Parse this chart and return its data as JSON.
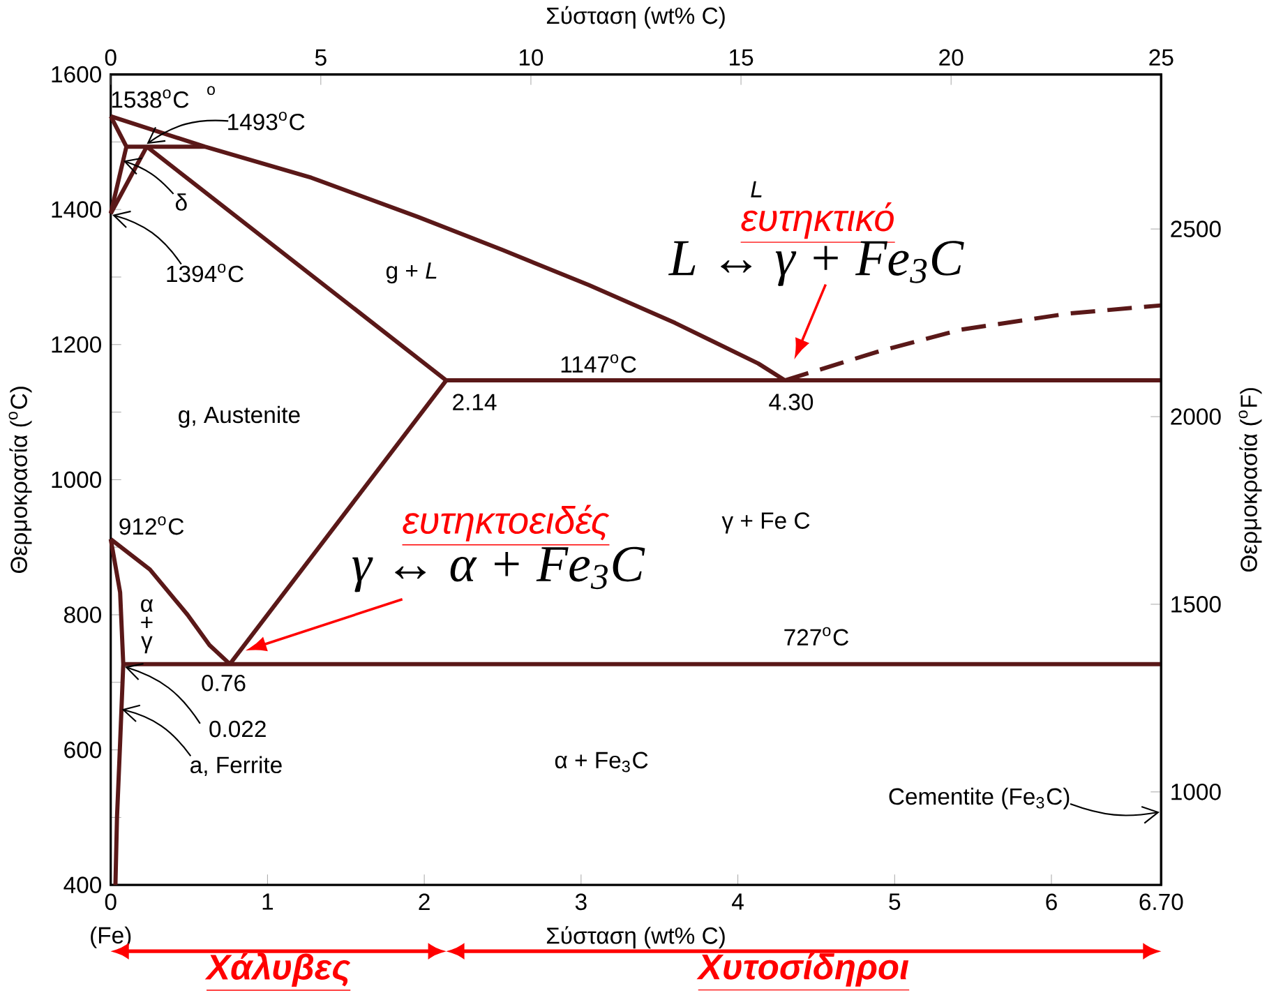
{
  "chart_data": {
    "type": "line",
    "line_style": "solid",
    "marker": "none",
    "xlabel": "Σύσταση (wt% C)",
    "x2label": "Σύσταση (wt% C)",
    "ylabel": "Θερμοκρασία ($^{o}$C)",
    "y2label": "Θερμοκρασία ($^{o}$F)",
    "xlim": [
      0,
      6.7
    ],
    "xticks": [
      0,
      1,
      2,
      3,
      4,
      5,
      6,
      {
        "value": 6.7,
        "label": "6.70"
      }
    ],
    "ylim": [
      400,
      1600
    ],
    "yticks": [
      400,
      {
        "value": 500,
        "label": null
      },
      600,
      {
        "value": 700,
        "label": null
      },
      800,
      {
        "value": 900,
        "label": null
      },
      1000,
      {
        "value": 1100,
        "label": null
      },
      1200,
      {
        "value": 1300,
        "label": null
      },
      1400,
      {
        "value": 1500,
        "label": null
      },
      1600
    ],
    "x2lim": [
      0,
      25
    ],
    "x2ticks": [
      0,
      5,
      10,
      15,
      20,
      25
    ],
    "y2lim": [
      752,
      2912
    ],
    "y2ticks": [
      1000,
      1500,
      2000,
      2500
    ],
    "series": [
      {
        "color": "#5a1818",
        "x": [
          0,
          0.6,
          1.28,
          1.96,
          2.5,
          3.05,
          3.6,
          4.13,
          4.3
        ],
        "values": [
          1538,
          1493,
          1447,
          1389,
          1340,
          1288,
          1232,
          1172,
          1147
        ]
      },
      {
        "color": "#5a1818",
        "x": [
          0,
          0.1
        ],
        "values": [
          1538,
          1493
        ]
      },
      {
        "color": "#5a1818",
        "x": [
          0.1,
          0.6
        ],
        "values": [
          1493,
          1493
        ]
      },
      {
        "color": "#5a1818",
        "x": [
          0.1,
          0
        ],
        "values": [
          1493,
          1394
        ]
      },
      {
        "color": "#5a1818",
        "x": [
          0.23,
          0
        ],
        "values": [
          1493,
          1394
        ]
      },
      {
        "color": "#5a1818",
        "x": [
          0.23,
          2.14
        ],
        "values": [
          1493,
          1147
        ]
      },
      {
        "color": "#5a1818",
        "x": [
          2.14,
          6.7
        ],
        "values": [
          1147,
          1147
        ]
      },
      {
        "color": "#5a1818",
        "line_style": "dashed",
        "x": [
          4.3,
          4.9,
          5.42,
          6.11,
          6.7
        ],
        "values": [
          1147,
          1190,
          1222,
          1246,
          1258
        ]
      },
      {
        "color": "#5a1818",
        "x": [
          2.14,
          0.76
        ],
        "values": [
          1147,
          727
        ]
      },
      {
        "color": "#5a1818",
        "x": [
          0,
          0.25,
          0.49,
          0.63,
          0.76
        ],
        "values": [
          912,
          867,
          800,
          755,
          727
        ]
      },
      {
        "color": "#5a1818",
        "x": [
          0,
          0.06,
          0.08,
          0.06,
          0.04,
          0.03
        ],
        "values": [
          912,
          833,
          727,
          611,
          500,
          400
        ]
      },
      {
        "color": "#5a1818",
        "x": [
          0.08,
          6.7
        ],
        "values": [
          727,
          727
        ]
      }
    ],
    "annotations": [
      {
        "text": "1538$^{o}$C",
        "x": 0,
        "y": 1538
      },
      "o",
      {
        "text": "1493$^{o}$C",
        "x": 0.23,
        "y": 1493
      },
      {
        "text": "δ",
        "x": 0.08,
        "y": 1472
      },
      {
        "text": "1394$^{o}$C",
        "x": 0,
        "y": 1394
      },
      "g + *L*",
      "L",
      {
        "text": "1147$^{o}$C",
        "x": 3.11,
        "y": 1147
      },
      {
        "text": "2.14",
        "x": 2.14,
        "y": 1147
      },
      {
        "text": "4.30",
        "x": 4.3,
        "y": 1147
      },
      "g, Austenite",
      {
        "text": "912$^{o}$C",
        "x": 0,
        "y": 912
      },
      "γ + Fe C",
      "α + γ",
      {
        "text": "727$^{o}$C",
        "x": 4.5,
        "y": 727
      },
      {
        "text": "0.76",
        "x": 0.76,
        "y": 727
      },
      {
        "text": "0.022",
        "x": 0.08,
        "y": 727
      },
      {
        "text": "a, Ferrite",
        "x": 0.07,
        "y": 660
      },
      "α + Fe$_{3}$C",
      "Cementite (Fe$_{3}$C)",
      "ευτηκτικό",
      {
        "text": "L ↔ γ + Fe$_{3}$C",
        "x": 4.3,
        "y": 1147
      },
      "ευτηκτοειδές",
      {
        "text": "γ ↔ α + Fe$_{3}$C",
        "x": 0.76,
        "y": 727
      },
      "(Fe)",
      "Χάλυβες",
      "Χυτοσίδηροι"
    ]
  }
}
